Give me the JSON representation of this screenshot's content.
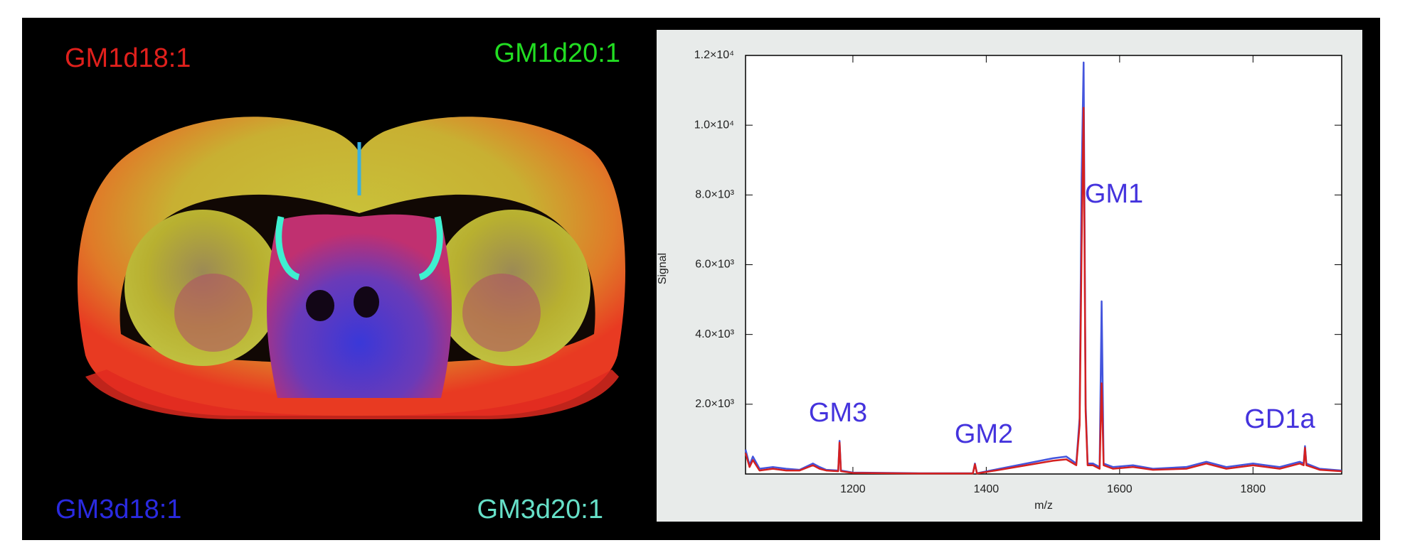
{
  "image_panel": {
    "labels": [
      {
        "text": "GM1d18:1",
        "color": "#e0201c"
      },
      {
        "text": "GM1d20:1",
        "color": "#22dd22"
      },
      {
        "text": "GM3d18:1",
        "color": "#2a2ae0"
      },
      {
        "text": "GM3d20:1",
        "color": "#66e0c8"
      }
    ]
  },
  "chart_data": {
    "type": "line",
    "xlabel": "m/z",
    "ylabel": "Signal",
    "xlim": [
      1039,
      1933
    ],
    "ylim": [
      0,
      12000
    ],
    "xticks": [
      1200,
      1400,
      1600,
      1800
    ],
    "yticks": [
      {
        "value": 2000,
        "label": "2.0×10³"
      },
      {
        "value": 4000,
        "label": "4.0×10³"
      },
      {
        "value": 6000,
        "label": "6.0×10³"
      },
      {
        "value": 8000,
        "label": "8.0×10³"
      },
      {
        "value": 10000,
        "label": "1.0×10⁴"
      },
      {
        "value": 12000,
        "label": "1.2×10⁴"
      }
    ],
    "annotations": [
      "GM3",
      "GM2",
      "GM1",
      "GD1a"
    ],
    "x": [
      1039,
      1045,
      1050,
      1060,
      1080,
      1100,
      1120,
      1140,
      1150,
      1160,
      1178,
      1180,
      1182,
      1200,
      1300,
      1380,
      1383,
      1386,
      1420,
      1460,
      1500,
      1520,
      1535,
      1540,
      1543,
      1546,
      1549,
      1552,
      1560,
      1570,
      1573,
      1576,
      1590,
      1620,
      1650,
      1700,
      1730,
      1760,
      1800,
      1840,
      1870,
      1876,
      1878,
      1880,
      1900,
      1933
    ],
    "series": [
      {
        "color": "#4455dd",
        "values": [
          700,
          250,
          500,
          150,
          200,
          150,
          120,
          300,
          200,
          120,
          100,
          950,
          100,
          40,
          20,
          20,
          300,
          20,
          150,
          300,
          450,
          500,
          300,
          1600,
          8500,
          11800,
          2000,
          300,
          300,
          200,
          4950,
          300,
          200,
          250,
          150,
          200,
          350,
          200,
          300,
          200,
          350,
          300,
          800,
          300,
          150,
          100
        ]
      },
      {
        "color": "#d42020",
        "values": [
          600,
          200,
          400,
          100,
          150,
          100,
          100,
          250,
          150,
          100,
          80,
          900,
          80,
          30,
          15,
          15,
          280,
          15,
          120,
          250,
          380,
          420,
          250,
          1400,
          6500,
          10500,
          1800,
          250,
          250,
          150,
          2600,
          250,
          150,
          200,
          120,
          150,
          300,
          150,
          250,
          150,
          300,
          250,
          750,
          250,
          120,
          80
        ]
      }
    ]
  }
}
